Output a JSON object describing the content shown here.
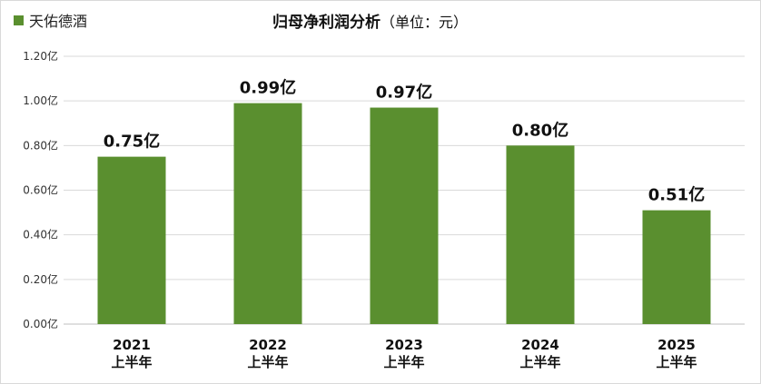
{
  "chart_data": {
    "type": "bar",
    "title": "归母净利润分析",
    "title_unit": "（单位：元）",
    "legend": {
      "label": "天佑德酒",
      "position": "top-left"
    },
    "categories": [
      {
        "year": "2021",
        "period": "上半年"
      },
      {
        "year": "2022",
        "period": "上半年"
      },
      {
        "year": "2023",
        "period": "上半年"
      },
      {
        "year": "2024",
        "period": "上半年"
      },
      {
        "year": "2025",
        "period": "上半年"
      }
    ],
    "series": [
      {
        "name": "天佑德酒",
        "values": [
          0.75,
          0.99,
          0.97,
          0.8,
          0.51
        ],
        "data_labels": [
          "0.75亿",
          "0.99亿",
          "0.97亿",
          "0.80亿",
          "0.51亿"
        ]
      }
    ],
    "y_ticks": [
      "0.00亿",
      "0.20亿",
      "0.40亿",
      "0.60亿",
      "0.80亿",
      "1.00亿",
      "1.20亿"
    ],
    "ylim": [
      0,
      1.2
    ],
    "grid": true,
    "colors": {
      "bar": "#5a8f2f",
      "grid": "#d9d9d9"
    }
  }
}
